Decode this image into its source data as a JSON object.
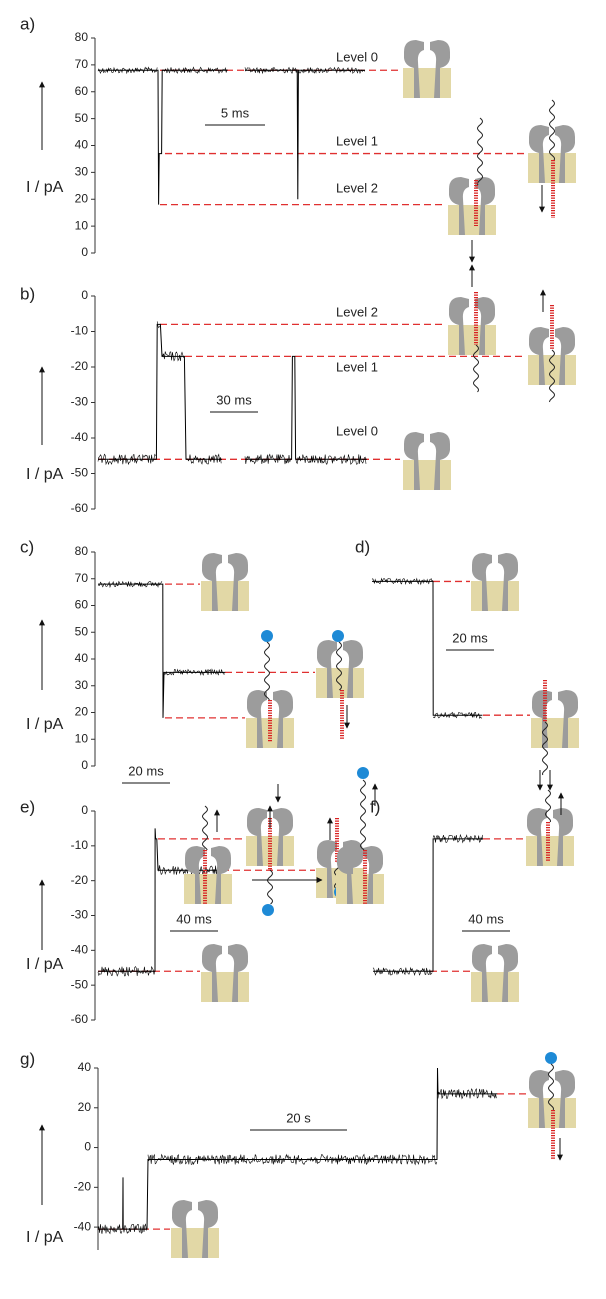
{
  "chart_data": [
    {
      "type": "line",
      "panel_label": "a)",
      "ylabel": "I / pA",
      "ylim": [
        0,
        80
      ],
      "yticks": [
        0,
        10,
        20,
        30,
        40,
        50,
        60,
        70,
        80
      ],
      "x": [
        0,
        5,
        5.05,
        5.1,
        5.3,
        5.35,
        10.8,
        11.5,
        12.25,
        16.6,
        16.65,
        16.7,
        22.25
      ],
      "values": [
        68,
        68,
        18,
        37,
        37,
        68,
        68,
        null,
        68,
        68,
        20,
        68,
        68
      ],
      "color": "#000000",
      "level_color": "#e03030",
      "scale_bar": {
        "value": 5,
        "label": "5 ms"
      },
      "levels": [
        {
          "label": "Level 0",
          "value": 68
        },
        {
          "label": "Level 1",
          "value": 37
        },
        {
          "label": "Level 2",
          "value": 18
        }
      ]
    },
    {
      "type": "line",
      "panel_label": "b)",
      "ylabel": "I / pA",
      "ylim": [
        -60,
        0
      ],
      "yticks": [
        -60,
        -50,
        -40,
        -30,
        -20,
        -10,
        0
      ],
      "x": [
        0,
        36.5,
        37,
        39,
        40,
        54,
        55,
        77.5,
        84,
        91.9,
        121,
        121.5,
        123,
        123.5,
        168
      ],
      "values": [
        -46,
        -46,
        -8,
        -8,
        -17,
        -17,
        -46,
        -46,
        null,
        -46,
        -46,
        -17,
        -17,
        -46,
        -46
      ],
      "color": "#000000",
      "level_color": "#e03030",
      "scale_bar": {
        "value": 30,
        "label": "30 ms"
      },
      "levels": [
        {
          "label": "Level 2",
          "value": -8
        },
        {
          "label": "Level 1",
          "value": -17
        },
        {
          "label": "Level 0",
          "value": -46
        }
      ]
    },
    {
      "type": "line",
      "panel_label": "c)",
      "ylabel": "I / pA",
      "ylim": [
        0,
        80
      ],
      "yticks": [
        0,
        10,
        20,
        30,
        40,
        50,
        60,
        70,
        80
      ],
      "x": [
        0,
        27,
        27.1,
        27.5,
        53
      ],
      "values": [
        68,
        68,
        18,
        35,
        35
      ],
      "color": "#000000",
      "level_color": "#e03030",
      "scale_bar": {
        "value": 20,
        "label": "20 ms"
      },
      "levels": [
        {
          "value": 68
        },
        {
          "value": 35
        },
        {
          "value": 18
        }
      ]
    },
    {
      "type": "line",
      "panel_label": "d)",
      "ylim": [
        0,
        80
      ],
      "x": [
        0,
        25.4,
        25.5,
        46
      ],
      "values": [
        69,
        69,
        19,
        19
      ],
      "color": "#000000",
      "level_color": "#e03030",
      "scale_bar": {
        "value": 20,
        "label": "20 ms"
      },
      "levels": [
        {
          "value": 69
        },
        {
          "value": 19
        }
      ]
    },
    {
      "type": "line",
      "panel_label": "e)",
      "ylabel": "I / pA",
      "ylim": [
        -60,
        0
      ],
      "yticks": [
        -60,
        -50,
        -40,
        -30,
        -20,
        -10,
        0
      ],
      "x": [
        0,
        47.5,
        47.6,
        48,
        49,
        50,
        103
      ],
      "values": [
        -46,
        -46,
        -5,
        -8,
        -8,
        -17,
        -17
      ],
      "color": "#000000",
      "level_color": "#e03030",
      "scale_bar": {
        "value": 40,
        "label": "40 ms"
      },
      "levels": [
        {
          "value": -8
        },
        {
          "value": -17
        },
        {
          "value": -46
        }
      ]
    },
    {
      "type": "line",
      "panel_label": "f)",
      "ylim": [
        -60,
        0
      ],
      "x": [
        0,
        50,
        50.1,
        91.7
      ],
      "values": [
        -46,
        -46,
        -8,
        -8
      ],
      "color": "#000000",
      "level_color": "#e03030",
      "scale_bar": {
        "value": 40,
        "label": "40 ms"
      },
      "levels": [
        {
          "value": -8
        },
        {
          "value": -46
        }
      ]
    },
    {
      "type": "line",
      "panel_label": "g)",
      "ylabel": "I / pA",
      "ylim": [
        -50,
        40
      ],
      "yticks": [
        -40,
        -20,
        0,
        20,
        40
      ],
      "x": [
        0,
        5.1,
        5.15,
        5.2,
        10.1,
        10.3,
        69.9,
        70,
        70.1,
        82.3
      ],
      "values": [
        -41,
        -41,
        -15,
        -41,
        -41,
        -6,
        -6,
        40,
        27,
        27
      ],
      "color": "#000000",
      "level_color": "#e03030",
      "scale_bar": {
        "value": 20,
        "label": "20 s"
      },
      "levels": [
        {
          "value": -41
        },
        {
          "value": 27
        }
      ]
    }
  ]
}
